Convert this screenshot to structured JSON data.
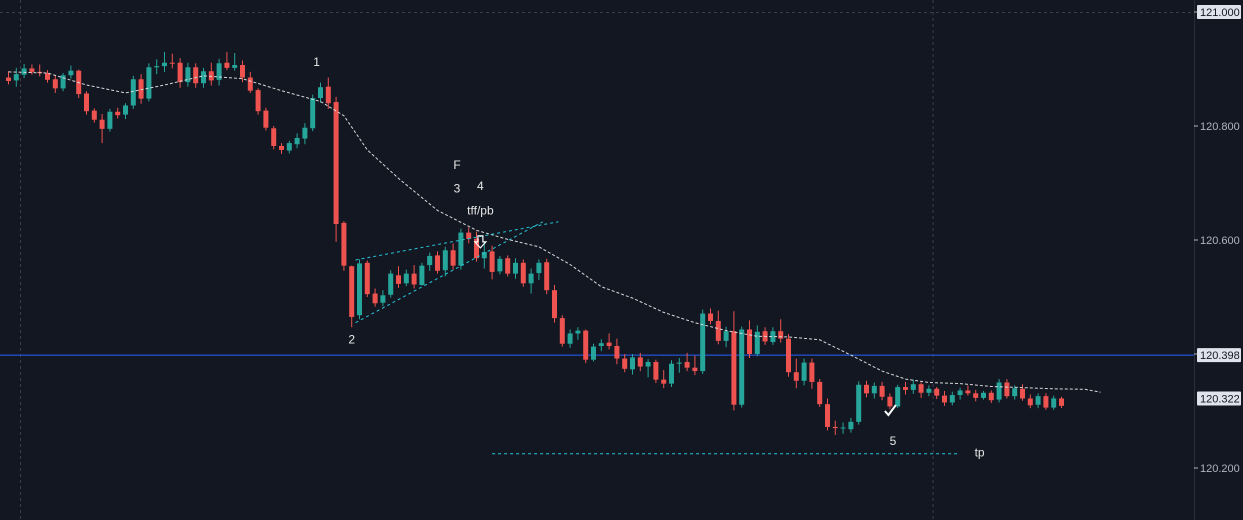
{
  "colors": {
    "background": "#131722",
    "grid": "#3a3e4a",
    "up": "#26a69a",
    "down": "#ef5350",
    "ma": "#d9d9d9",
    "trendline": "#26c6da",
    "horizontal_line": "#2962ff",
    "text": "#e8e8e8",
    "axis_text": "#b2b5be",
    "badge_bg": "#e0e3eb"
  },
  "chart_data": {
    "type": "candlestick",
    "price_range": [
      120.15,
      121.02
    ],
    "y_ticks": [
      {
        "value": 120.2,
        "label": "120.200"
      },
      {
        "value": 120.4,
        "label": "120.400"
      },
      {
        "value": 120.6,
        "label": "120.600"
      },
      {
        "value": 120.8,
        "label": "120.800"
      },
      {
        "value": 121.0,
        "label": "121.000"
      }
    ],
    "price_badges": [
      {
        "name": "top",
        "value": 121.0,
        "label": "121.000"
      },
      {
        "name": "blue-line",
        "value": 120.398,
        "label": "120.398"
      },
      {
        "name": "last",
        "value": 120.322,
        "label": "120.322"
      }
    ],
    "horizontal_line": {
      "value": 120.398
    },
    "grid": {
      "vertical_at_bars": [
        0,
        117
      ],
      "top_line_value": 121.0
    },
    "candles": [
      [
        120.885,
        120.896,
        120.873,
        120.879
      ],
      [
        120.88,
        120.902,
        120.869,
        120.891
      ],
      [
        120.89,
        120.909,
        120.884,
        120.901
      ],
      [
        120.901,
        120.908,
        120.89,
        120.895
      ],
      [
        120.895,
        120.908,
        120.887,
        120.893
      ],
      [
        120.893,
        120.898,
        120.876,
        120.881
      ],
      [
        120.882,
        120.889,
        120.858,
        120.866
      ],
      [
        120.866,
        120.893,
        120.861,
        120.889
      ],
      [
        120.889,
        120.906,
        120.883,
        120.897
      ],
      [
        120.897,
        120.899,
        120.849,
        120.856
      ],
      [
        120.857,
        120.861,
        120.82,
        120.826
      ],
      [
        120.827,
        120.831,
        120.806,
        120.811
      ],
      [
        120.811,
        120.821,
        120.77,
        120.795
      ],
      [
        120.795,
        120.83,
        120.79,
        120.825
      ],
      [
        120.825,
        120.832,
        120.813,
        120.819
      ],
      [
        120.82,
        120.84,
        120.812,
        120.836
      ],
      [
        120.836,
        120.888,
        120.83,
        120.882
      ],
      [
        120.882,
        120.891,
        120.839,
        120.848
      ],
      [
        120.848,
        120.91,
        120.843,
        120.903
      ],
      [
        120.903,
        120.917,
        120.891,
        120.905
      ],
      [
        120.905,
        120.93,
        120.895,
        120.911
      ],
      [
        120.911,
        120.927,
        120.901,
        120.91
      ],
      [
        120.911,
        120.919,
        120.867,
        120.877
      ],
      [
        120.877,
        120.911,
        120.869,
        120.903
      ],
      [
        120.903,
        120.91,
        120.867,
        120.875
      ],
      [
        120.875,
        120.902,
        120.867,
        120.896
      ],
      [
        120.896,
        120.911,
        120.871,
        120.88
      ],
      [
        120.881,
        120.918,
        120.871,
        120.91
      ],
      [
        120.911,
        120.93,
        120.898,
        120.902
      ],
      [
        120.902,
        120.928,
        120.897,
        120.907
      ],
      [
        120.907,
        120.915,
        120.877,
        120.885
      ],
      [
        120.885,
        120.895,
        120.858,
        120.862
      ],
      [
        120.863,
        120.866,
        120.82,
        120.826
      ],
      [
        120.827,
        120.832,
        120.792,
        120.797
      ],
      [
        120.796,
        120.8,
        120.759,
        120.765
      ],
      [
        120.765,
        120.77,
        120.751,
        120.758
      ],
      [
        120.757,
        120.774,
        120.752,
        120.77
      ],
      [
        120.768,
        120.787,
        120.761,
        120.779
      ],
      [
        120.778,
        120.805,
        120.768,
        120.797
      ],
      [
        120.796,
        120.855,
        120.791,
        120.849
      ],
      [
        120.849,
        120.876,
        120.841,
        120.868
      ],
      [
        120.869,
        120.885,
        120.83,
        120.84
      ],
      [
        120.842,
        120.851,
        120.597,
        120.628
      ],
      [
        120.63,
        120.633,
        120.546,
        120.555
      ],
      [
        120.554,
        120.555,
        120.447,
        120.465
      ],
      [
        120.468,
        120.566,
        120.461,
        120.559
      ],
      [
        120.56,
        120.564,
        120.5,
        120.505
      ],
      [
        120.506,
        120.515,
        120.483,
        120.489
      ],
      [
        120.49,
        120.512,
        120.484,
        120.503
      ],
      [
        120.504,
        120.547,
        120.499,
        120.541
      ],
      [
        120.538,
        120.554,
        120.516,
        120.523
      ],
      [
        120.524,
        120.548,
        120.519,
        120.541
      ],
      [
        120.541,
        120.556,
        120.515,
        120.522
      ],
      [
        120.521,
        120.56,
        120.52,
        120.555
      ],
      [
        120.556,
        120.578,
        120.546,
        120.572
      ],
      [
        120.573,
        120.58,
        120.541,
        120.546
      ],
      [
        120.547,
        120.588,
        120.536,
        120.582
      ],
      [
        120.582,
        120.594,
        120.548,
        120.555
      ],
      [
        120.555,
        120.62,
        120.548,
        120.613
      ],
      [
        120.613,
        120.622,
        120.594,
        120.602
      ],
      [
        120.602,
        120.615,
        120.562,
        120.568
      ],
      [
        120.568,
        120.597,
        120.55,
        120.579
      ],
      [
        120.58,
        120.59,
        120.531,
        120.544
      ],
      [
        120.545,
        120.572,
        120.54,
        120.567
      ],
      [
        120.568,
        120.573,
        120.536,
        120.541
      ],
      [
        120.541,
        120.568,
        120.532,
        120.56
      ],
      [
        120.56,
        120.566,
        120.518,
        120.524
      ],
      [
        120.524,
        120.55,
        120.506,
        120.541
      ],
      [
        120.542,
        120.566,
        120.53,
        120.56
      ],
      [
        120.561,
        120.567,
        120.505,
        120.512
      ],
      [
        120.512,
        120.521,
        120.455,
        120.463
      ],
      [
        120.463,
        120.468,
        120.413,
        120.418
      ],
      [
        120.418,
        120.443,
        120.411,
        120.436
      ],
      [
        120.436,
        120.447,
        120.425,
        120.441
      ],
      [
        120.441,
        120.443,
        120.384,
        120.39
      ],
      [
        120.39,
        120.418,
        120.387,
        120.413
      ],
      [
        120.414,
        120.426,
        120.405,
        120.419
      ],
      [
        120.42,
        120.436,
        120.408,
        120.414
      ],
      [
        120.414,
        120.427,
        120.382,
        120.392
      ],
      [
        120.392,
        120.4,
        120.368,
        120.374
      ],
      [
        120.373,
        120.4,
        120.364,
        120.394
      ],
      [
        120.394,
        120.402,
        120.37,
        120.378
      ],
      [
        120.378,
        120.391,
        120.359,
        120.386
      ],
      [
        120.386,
        120.39,
        120.349,
        120.355
      ],
      [
        120.355,
        120.372,
        120.34,
        120.348
      ],
      [
        120.348,
        120.389,
        120.342,
        120.383
      ],
      [
        120.383,
        120.393,
        120.367,
        120.385
      ],
      [
        120.386,
        120.402,
        120.37,
        120.376
      ],
      [
        120.376,
        120.397,
        120.363,
        120.37
      ],
      [
        120.37,
        120.478,
        120.365,
        120.471
      ],
      [
        120.471,
        120.48,
        120.452,
        120.458
      ],
      [
        120.458,
        120.476,
        120.417,
        120.423
      ],
      [
        120.423,
        120.448,
        120.412,
        120.44
      ],
      [
        120.44,
        120.475,
        120.301,
        120.311
      ],
      [
        120.311,
        120.448,
        120.306,
        120.443
      ],
      [
        120.443,
        120.459,
        120.393,
        120.4
      ],
      [
        120.4,
        120.45,
        120.396,
        120.439
      ],
      [
        120.44,
        120.447,
        120.416,
        120.422
      ],
      [
        120.421,
        120.447,
        120.416,
        120.44
      ],
      [
        120.44,
        120.461,
        120.42,
        120.427
      ],
      [
        120.427,
        120.435,
        120.36,
        120.368
      ],
      [
        120.368,
        120.392,
        120.34,
        120.353
      ],
      [
        120.353,
        120.392,
        120.345,
        120.385
      ],
      [
        120.385,
        120.392,
        120.339,
        120.351
      ],
      [
        120.351,
        120.356,
        120.307,
        120.312
      ],
      [
        120.312,
        120.322,
        120.266,
        120.272
      ],
      [
        120.272,
        120.283,
        120.258,
        120.27
      ],
      [
        120.27,
        120.28,
        120.26,
        120.271
      ],
      [
        120.268,
        120.288,
        120.262,
        120.281
      ],
      [
        120.281,
        120.352,
        120.276,
        120.346
      ],
      [
        120.346,
        120.353,
        120.324,
        120.331
      ],
      [
        120.331,
        120.35,
        120.322,
        120.344
      ],
      [
        120.344,
        120.351,
        120.319,
        120.325
      ],
      [
        120.325,
        120.331,
        120.303,
        120.308
      ],
      [
        120.308,
        120.346,
        120.305,
        120.342
      ],
      [
        120.342,
        120.351,
        120.329,
        120.337
      ],
      [
        120.337,
        120.355,
        120.33,
        120.347
      ],
      [
        120.347,
        120.35,
        120.323,
        120.332
      ],
      [
        120.332,
        120.345,
        120.326,
        120.339
      ],
      [
        120.339,
        120.342,
        120.321,
        120.327
      ],
      [
        120.327,
        120.335,
        120.309,
        120.315
      ],
      [
        120.315,
        120.334,
        120.31,
        120.328
      ],
      [
        120.328,
        120.341,
        120.32,
        120.336
      ],
      [
        120.336,
        120.345,
        120.327,
        120.331
      ],
      [
        120.331,
        120.337,
        120.317,
        120.323
      ],
      [
        120.323,
        120.335,
        120.32,
        120.332
      ],
      [
        120.332,
        120.336,
        120.314,
        120.319
      ],
      [
        120.32,
        120.356,
        120.315,
        120.35
      ],
      [
        120.35,
        120.356,
        120.322,
        120.326
      ],
      [
        120.326,
        120.345,
        120.32,
        120.34
      ],
      [
        120.339,
        120.347,
        120.318,
        120.322
      ],
      [
        120.322,
        120.329,
        120.305,
        120.31
      ],
      [
        120.311,
        120.331,
        120.305,
        120.326
      ],
      [
        120.326,
        120.331,
        120.302,
        120.306
      ],
      [
        120.306,
        120.327,
        120.302,
        120.322
      ],
      [
        120.322,
        120.325,
        120.305,
        120.309
      ]
    ],
    "ma_points": [
      [
        0,
        120.895
      ],
      [
        5,
        120.893
      ],
      [
        10,
        120.872
      ],
      [
        15,
        120.858
      ],
      [
        20,
        120.872
      ],
      [
        25,
        120.888
      ],
      [
        30,
        120.883
      ],
      [
        35,
        120.862
      ],
      [
        40,
        120.843
      ],
      [
        43,
        120.818
      ],
      [
        46,
        120.758
      ],
      [
        50,
        120.708
      ],
      [
        55,
        120.652
      ],
      [
        60,
        120.617
      ],
      [
        64,
        120.601
      ],
      [
        68,
        120.588
      ],
      [
        72,
        120.557
      ],
      [
        76,
        120.518
      ],
      [
        80,
        120.498
      ],
      [
        84,
        120.473
      ],
      [
        88,
        120.455
      ],
      [
        92,
        120.441
      ],
      [
        96,
        120.431
      ],
      [
        100,
        120.43
      ],
      [
        104,
        120.425
      ],
      [
        108,
        120.398
      ],
      [
        112,
        120.37
      ],
      [
        115,
        120.356
      ],
      [
        118,
        120.35
      ],
      [
        122,
        120.348
      ],
      [
        126,
        120.343
      ],
      [
        130,
        120.341
      ],
      [
        134,
        120.339
      ],
      [
        138,
        120.338
      ],
      [
        140,
        120.333
      ]
    ],
    "trendlines": [
      {
        "from": [
          44.5,
          120.565
        ],
        "to": [
          70.5,
          120.632
        ]
      },
      {
        "from": [
          44.5,
          120.455
        ],
        "to": [
          68.5,
          120.632
        ]
      }
    ],
    "tp_line": {
      "from": [
        62,
        120.225
      ],
      "to": [
        122,
        120.225
      ]
    },
    "annotations": [
      {
        "text": "1",
        "bar": 39.5,
        "price": 120.905
      },
      {
        "text": "2",
        "bar": 44,
        "price": 120.418
      },
      {
        "text": "F",
        "bar": 57.5,
        "price": 120.725
      },
      {
        "text": "3",
        "bar": 57.5,
        "price": 120.683
      },
      {
        "text": "4",
        "bar": 60.5,
        "price": 120.688
      },
      {
        "text": "tff/pb",
        "bar": 60.5,
        "price": 120.645
      },
      {
        "text": "5",
        "bar": 113.4,
        "price": 120.24
      },
      {
        "text": "tp",
        "bar": 124.5,
        "price": 120.22
      }
    ],
    "markers": [
      {
        "kind": "down-arrow",
        "bar": 60.5,
        "price": 120.595
      },
      {
        "kind": "check",
        "bar": 113,
        "price": 120.3
      }
    ]
  }
}
